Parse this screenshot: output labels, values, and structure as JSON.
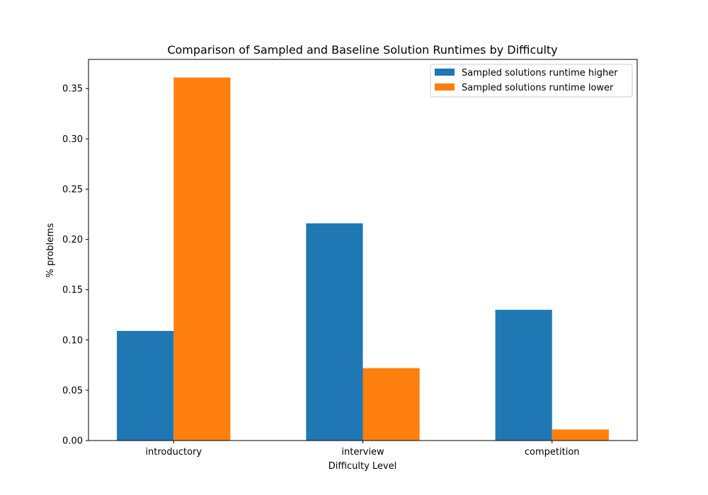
{
  "chart_data": {
    "type": "bar",
    "title": "Comparison of Sampled and Baseline Solution Runtimes by Difficulty",
    "xlabel": "Difficulty Level",
    "ylabel": "% problems",
    "categories": [
      "introductory",
      "interview",
      "competition"
    ],
    "series": [
      {
        "name": "Sampled solutions runtime higher",
        "values": [
          0.109,
          0.216,
          0.13
        ],
        "color": "#1f77b4"
      },
      {
        "name": "Sampled solutions runtime lower",
        "values": [
          0.361,
          0.072,
          0.011
        ],
        "color": "#ff7f0e"
      }
    ],
    "ylim": [
      0,
      0.379
    ],
    "yticks": [
      "0.00",
      "0.05",
      "0.10",
      "0.15",
      "0.20",
      "0.25",
      "0.30",
      "0.35"
    ],
    "grid": false,
    "legend_position": "top-right"
  }
}
